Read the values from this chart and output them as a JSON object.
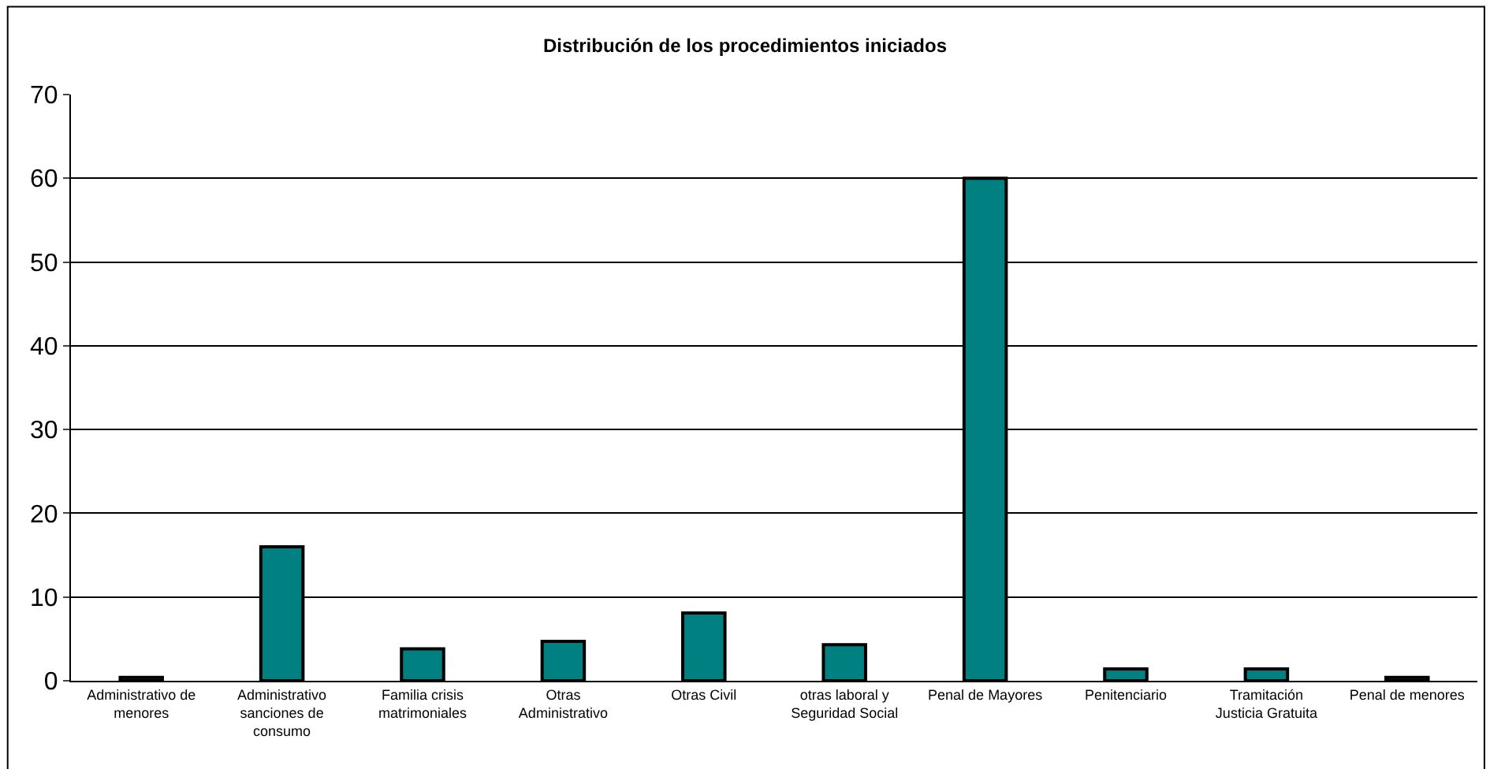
{
  "chart_data": {
    "type": "bar",
    "title": "Distribución de los procedimientos iniciados",
    "categories": [
      "Administrativo de menores",
      "Administrativo sanciones de consumo",
      "Familia crisis matrimoniales",
      "Otras Administrativo",
      "Otras Civil",
      "otras laboral y Seguridad Social",
      "Penal de Mayores",
      "Penitenciario",
      "Tramitación Justicia Gratuita",
      "Penal de menores"
    ],
    "values": [
      0.4,
      16,
      3.8,
      4.7,
      8.1,
      4.3,
      60,
      1.4,
      1.4,
      0.4
    ],
    "color": "#008080",
    "ylim": [
      0,
      70
    ],
    "yticks": [
      0,
      10,
      20,
      30,
      40,
      50,
      60,
      70
    ],
    "grid": "y"
  }
}
